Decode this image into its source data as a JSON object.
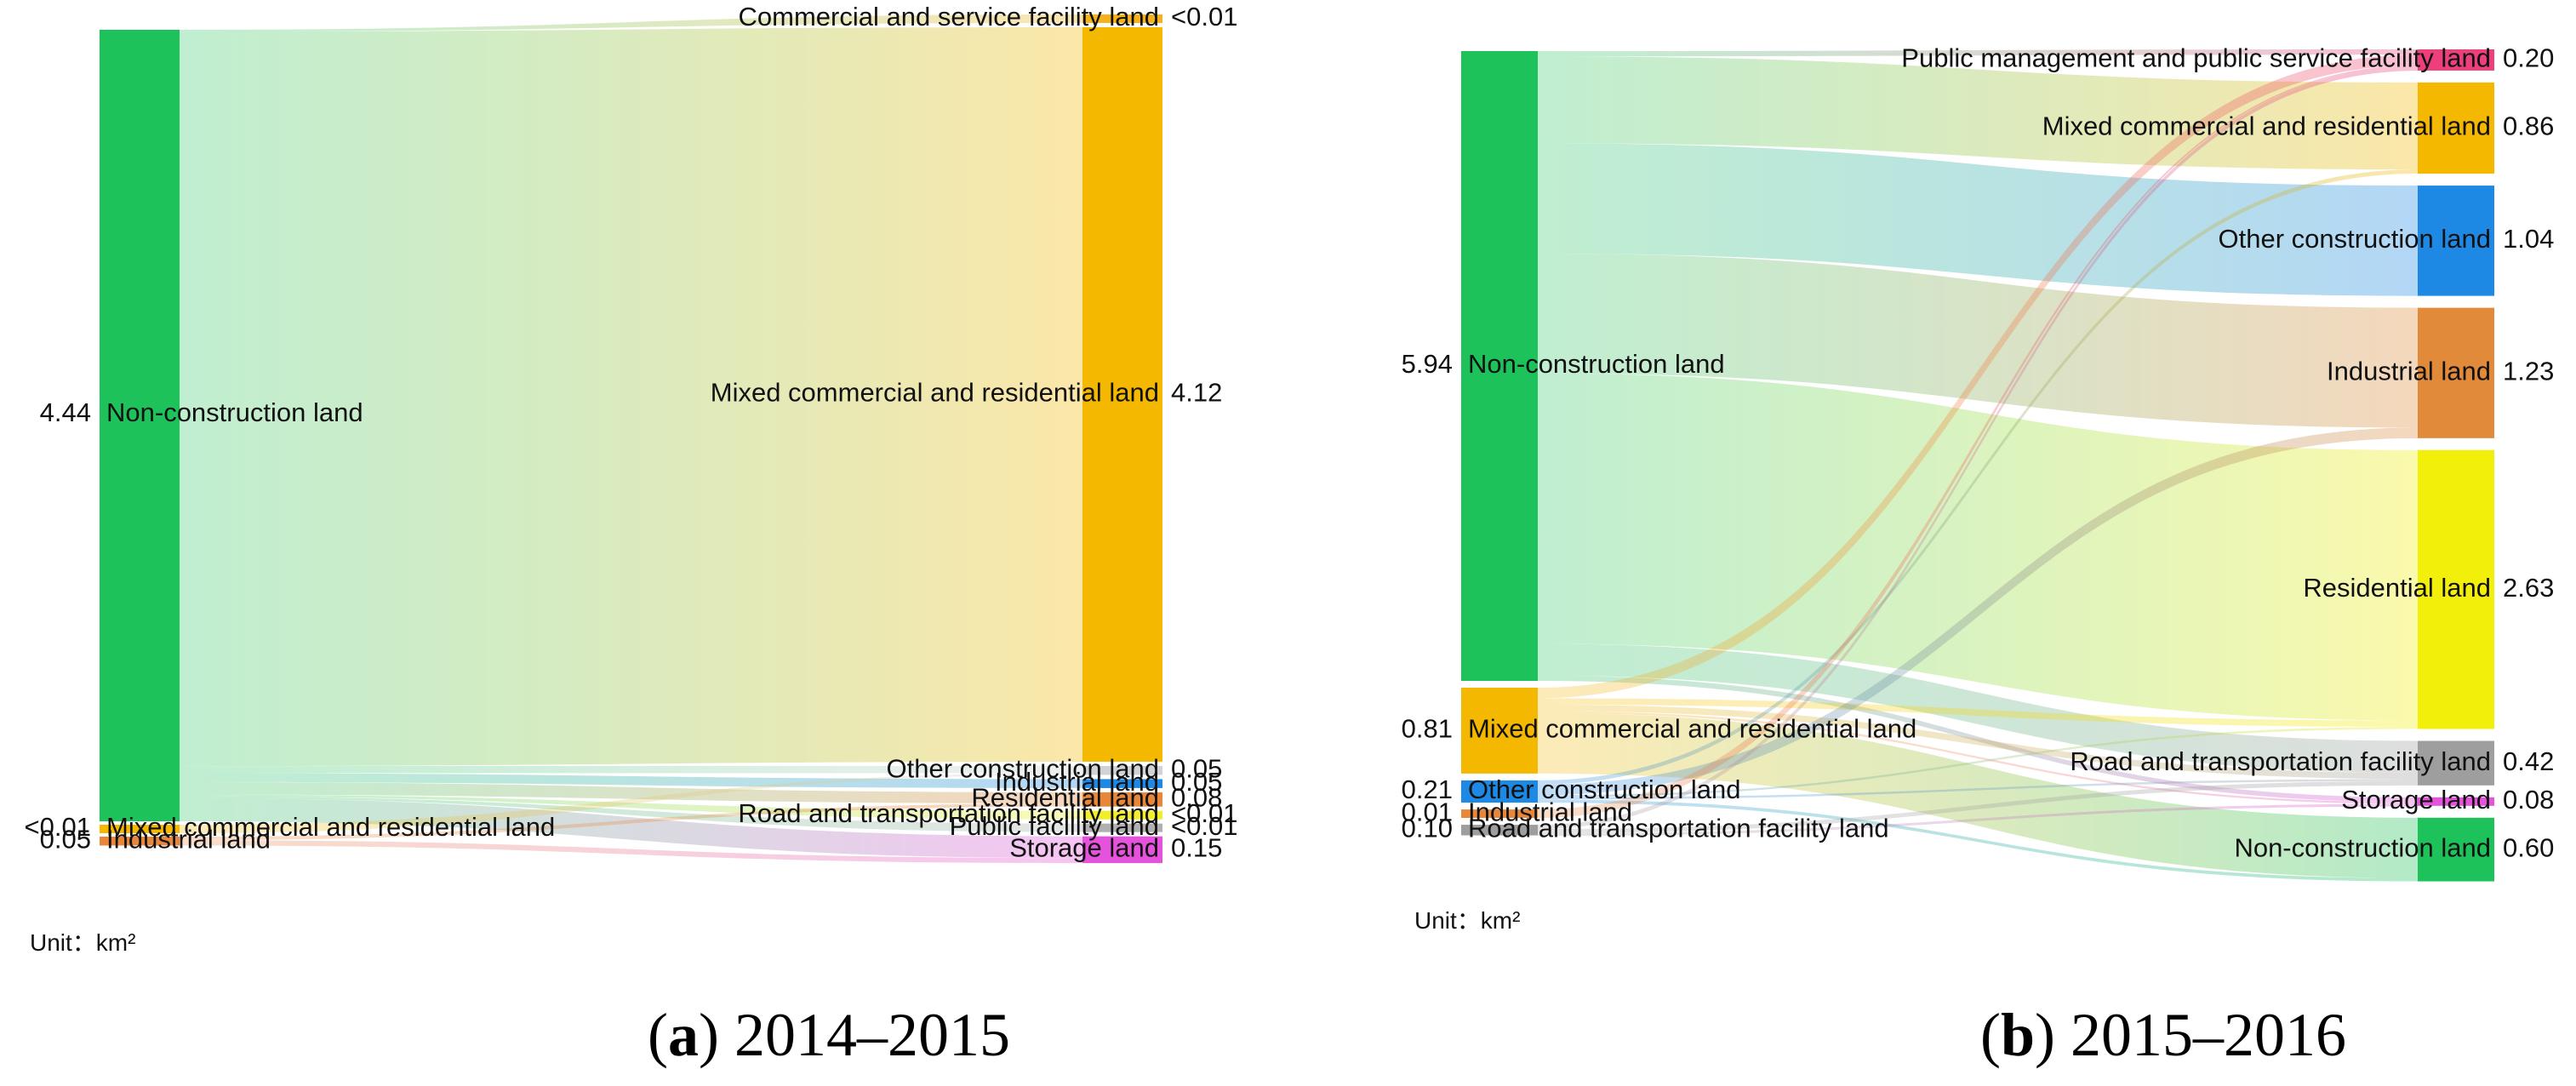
{
  "chart_data": [
    {
      "type": "sankey",
      "caption_letter": "a",
      "caption_years": "2014–2015",
      "unit": "Unit：km²",
      "sources": [
        {
          "id": "S_noncon",
          "name": "Non-construction land",
          "label": "4.44",
          "value": 4.44,
          "color": "#1ec25a"
        },
        {
          "id": "S_mixed",
          "name": "Mixed commercial and residential land",
          "label": "<0.01",
          "value": 0.01,
          "color": "#f5b800"
        },
        {
          "id": "S_ind",
          "name": "Industrial land",
          "label": "0.05",
          "value": 0.05,
          "color": "#e8863a"
        }
      ],
      "targets": [
        {
          "id": "T_comm",
          "name": "Commercial and service facility land",
          "label": "<0.01",
          "value": 0.01,
          "color": "#f6b21a"
        },
        {
          "id": "T_mixed",
          "name": "Mixed commercial and residential land",
          "label": "4.12",
          "value": 4.12,
          "color": "#f5b800"
        },
        {
          "id": "T_other",
          "name": "Other construction land",
          "label": "0.05",
          "value": 0.05,
          "color": "#cfd2d6"
        },
        {
          "id": "T_ind",
          "name": "Industrial land",
          "label": "0.05",
          "value": 0.05,
          "color": "#1e88e5"
        },
        {
          "id": "T_res",
          "name": "Residential land",
          "label": "0.08",
          "value": 0.08,
          "color": "#e8863a"
        },
        {
          "id": "T_road",
          "name": "Road and transportation facility land",
          "label": "<0.01",
          "value": 0.01,
          "color": "#f2ef2a"
        },
        {
          "id": "T_pub",
          "name": "Public facility land",
          "label": "<0.01",
          "value": 0.01,
          "color": "#b0b0b0"
        },
        {
          "id": "T_stor",
          "name": "Storage land",
          "label": "0.15",
          "value": 0.15,
          "color": "#e552dc"
        }
      ],
      "flows": [
        {
          "source": "S_noncon",
          "target": "T_comm",
          "value": 0.01
        },
        {
          "source": "S_noncon",
          "target": "T_mixed",
          "value": 4.12
        },
        {
          "source": "S_noncon",
          "target": "T_other",
          "value": 0.04
        },
        {
          "source": "S_noncon",
          "target": "T_ind",
          "value": 0.05
        },
        {
          "source": "S_noncon",
          "target": "T_res",
          "value": 0.07
        },
        {
          "source": "S_noncon",
          "target": "T_road",
          "value": 0.01
        },
        {
          "source": "S_noncon",
          "target": "T_pub",
          "value": 0.01
        },
        {
          "source": "S_noncon",
          "target": "T_stor",
          "value": 0.13
        },
        {
          "source": "S_mixed",
          "target": "T_other",
          "value": 0.01
        },
        {
          "source": "S_ind",
          "target": "T_res",
          "value": 0.02
        },
        {
          "source": "S_ind",
          "target": "T_stor",
          "value": 0.03
        }
      ]
    },
    {
      "type": "sankey",
      "caption_letter": "b",
      "caption_years": "2015–2016",
      "unit": "Unit：km²",
      "sources": [
        {
          "id": "S_noncon",
          "name": "Non-construction land",
          "label": "5.94",
          "value": 5.94,
          "color": "#1ec25a"
        },
        {
          "id": "S_mixed",
          "name": "Mixed commercial and residential land",
          "label": "0.81",
          "value": 0.81,
          "color": "#f5b800"
        },
        {
          "id": "S_other",
          "name": "Other construction land",
          "label": "0.21",
          "value": 0.21,
          "color": "#1e88e5"
        },
        {
          "id": "S_ind",
          "name": "Industrial land",
          "label": "0.01",
          "value": 0.01,
          "color": "#e8863a"
        },
        {
          "id": "S_road",
          "name": "Road and transportation facility land",
          "label": "0.10",
          "value": 0.1,
          "color": "#9e9e9e"
        }
      ],
      "targets": [
        {
          "id": "T_pub",
          "name": "Public management and public service facility land",
          "label": "0.20",
          "value": 0.2,
          "color": "#ec3f7c"
        },
        {
          "id": "T_mixed",
          "name": "Mixed commercial and residential land",
          "label": "0.86",
          "value": 0.86,
          "color": "#f5b800"
        },
        {
          "id": "T_other",
          "name": "Other construction land",
          "label": "1.04",
          "value": 1.04,
          "color": "#1e88e5"
        },
        {
          "id": "T_ind",
          "name": "Industrial land",
          "label": "1.23",
          "value": 1.23,
          "color": "#e08a3a"
        },
        {
          "id": "T_res",
          "name": "Residential land",
          "label": "2.63",
          "value": 2.63,
          "color": "#f2ef0a"
        },
        {
          "id": "T_road",
          "name": "Road and transportation facility land",
          "label": "0.42",
          "value": 0.42,
          "color": "#9e9e9e"
        },
        {
          "id": "T_stor",
          "name": "Storage land",
          "label": "0.08",
          "value": 0.08,
          "color": "#e552dc"
        },
        {
          "id": "T_noncon",
          "name": "Non-construction land",
          "label": "0.60",
          "value": 0.6,
          "color": "#1ec25a"
        }
      ],
      "flows": [
        {
          "source": "S_noncon",
          "target": "T_pub",
          "value": 0.05
        },
        {
          "source": "S_noncon",
          "target": "T_mixed",
          "value": 0.82
        },
        {
          "source": "S_noncon",
          "target": "T_other",
          "value": 1.04
        },
        {
          "source": "S_noncon",
          "target": "T_ind",
          "value": 1.13
        },
        {
          "source": "S_noncon",
          "target": "T_res",
          "value": 2.55
        },
        {
          "source": "S_noncon",
          "target": "T_road",
          "value": 0.3
        },
        {
          "source": "S_noncon",
          "target": "T_stor",
          "value": 0.05
        },
        {
          "source": "S_mixed",
          "target": "T_pub",
          "value": 0.1
        },
        {
          "source": "S_mixed",
          "target": "T_res",
          "value": 0.06
        },
        {
          "source": "S_mixed",
          "target": "T_road",
          "value": 0.06
        },
        {
          "source": "S_mixed",
          "target": "T_stor",
          "value": 0.02
        },
        {
          "source": "S_mixed",
          "target": "T_noncon",
          "value": 0.57
        },
        {
          "source": "S_other",
          "target": "T_mixed",
          "value": 0.04
        },
        {
          "source": "S_other",
          "target": "T_ind",
          "value": 0.1
        },
        {
          "source": "S_other",
          "target": "T_res",
          "value": 0.02
        },
        {
          "source": "S_other",
          "target": "T_road",
          "value": 0.02
        },
        {
          "source": "S_other",
          "target": "T_noncon",
          "value": 0.03
        },
        {
          "source": "S_ind",
          "target": "T_pub",
          "value": 0.01
        },
        {
          "source": "S_road",
          "target": "T_pub",
          "value": 0.04
        },
        {
          "source": "S_road",
          "target": "T_road",
          "value": 0.04
        },
        {
          "source": "S_road",
          "target": "T_stor",
          "value": 0.01
        },
        {
          "source": "S_road",
          "target": "T_stor",
          "value": 0.01
        }
      ]
    }
  ]
}
